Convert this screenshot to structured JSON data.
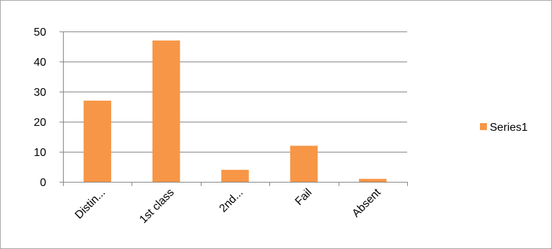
{
  "chart_data": {
    "type": "bar",
    "categories": [
      "Distin...",
      "1st class",
      "2nd...",
      "Fail",
      "Absent"
    ],
    "series": [
      {
        "name": "Series1",
        "values": [
          27,
          47,
          4,
          12,
          1
        ],
        "color": "#F79646"
      }
    ],
    "title": "",
    "xlabel": "",
    "ylabel": "",
    "ylim": [
      0,
      50
    ],
    "yticks": [
      0,
      10,
      20,
      30,
      40,
      50
    ],
    "grid": true,
    "gridline_color": "#868686",
    "legend_position": "right",
    "x_tick_rotation": "45deg"
  }
}
